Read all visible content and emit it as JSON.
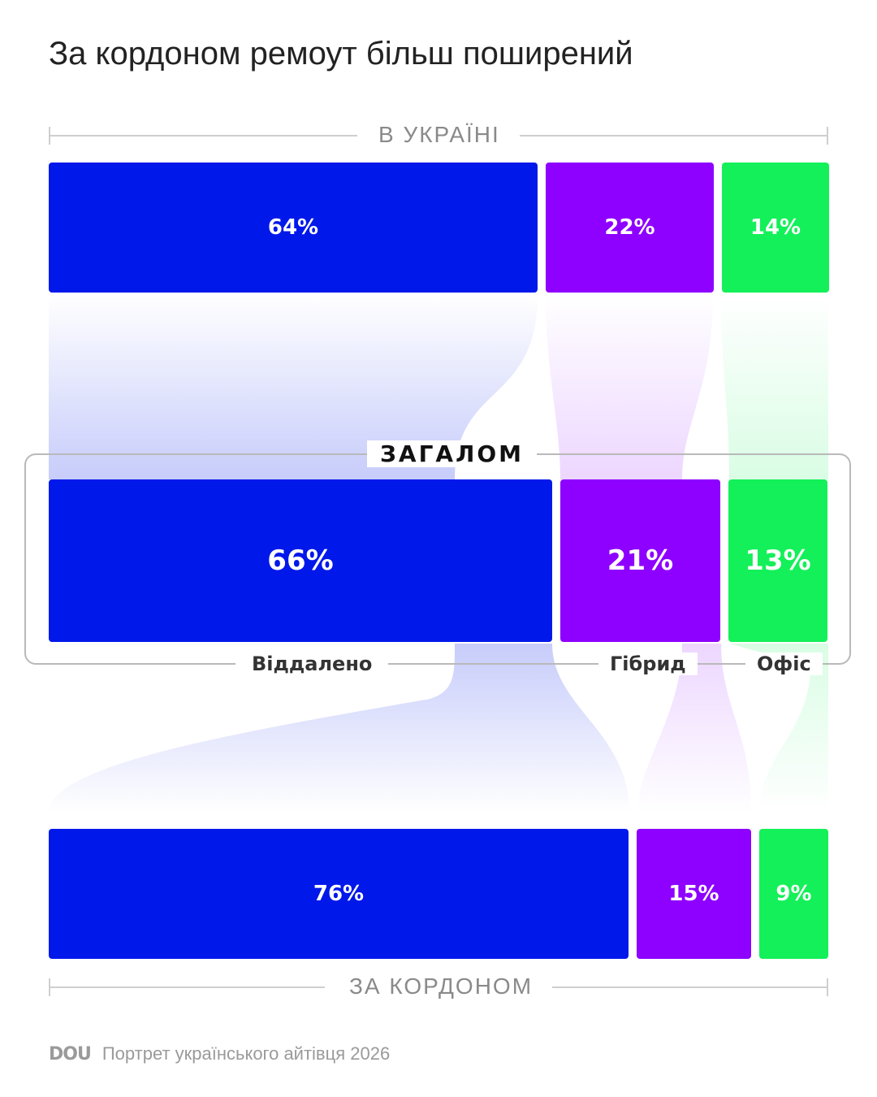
{
  "title": "За кордоном ремоут більш поширений",
  "colors": {
    "remote": "#0018ea",
    "hybrid": "#8e00ff",
    "office": "#14f059",
    "bracket": "#cfcfcf",
    "title": "#222222"
  },
  "chart_data": {
    "type": "bar",
    "orientation": "horizontal-stacked-100",
    "categories": [
      "Віддалено",
      "Гібрид",
      "Офіс"
    ],
    "series": [
      {
        "name": "В УКРАЇНІ",
        "values": [
          64,
          22,
          14
        ],
        "labels": [
          "64%",
          "22%",
          "14%"
        ]
      },
      {
        "name": "ЗАГАЛОМ",
        "values": [
          66,
          21,
          13
        ],
        "labels": [
          "66%",
          "21%",
          "13%"
        ]
      },
      {
        "name": "ЗА КОРДОНОМ",
        "values": [
          76,
          15,
          9
        ],
        "labels": [
          "76%",
          "15%",
          "9%"
        ]
      }
    ],
    "unit": "%"
  },
  "footer": {
    "logo": "DOU",
    "source": "Портрет українського айтівця 2026"
  }
}
